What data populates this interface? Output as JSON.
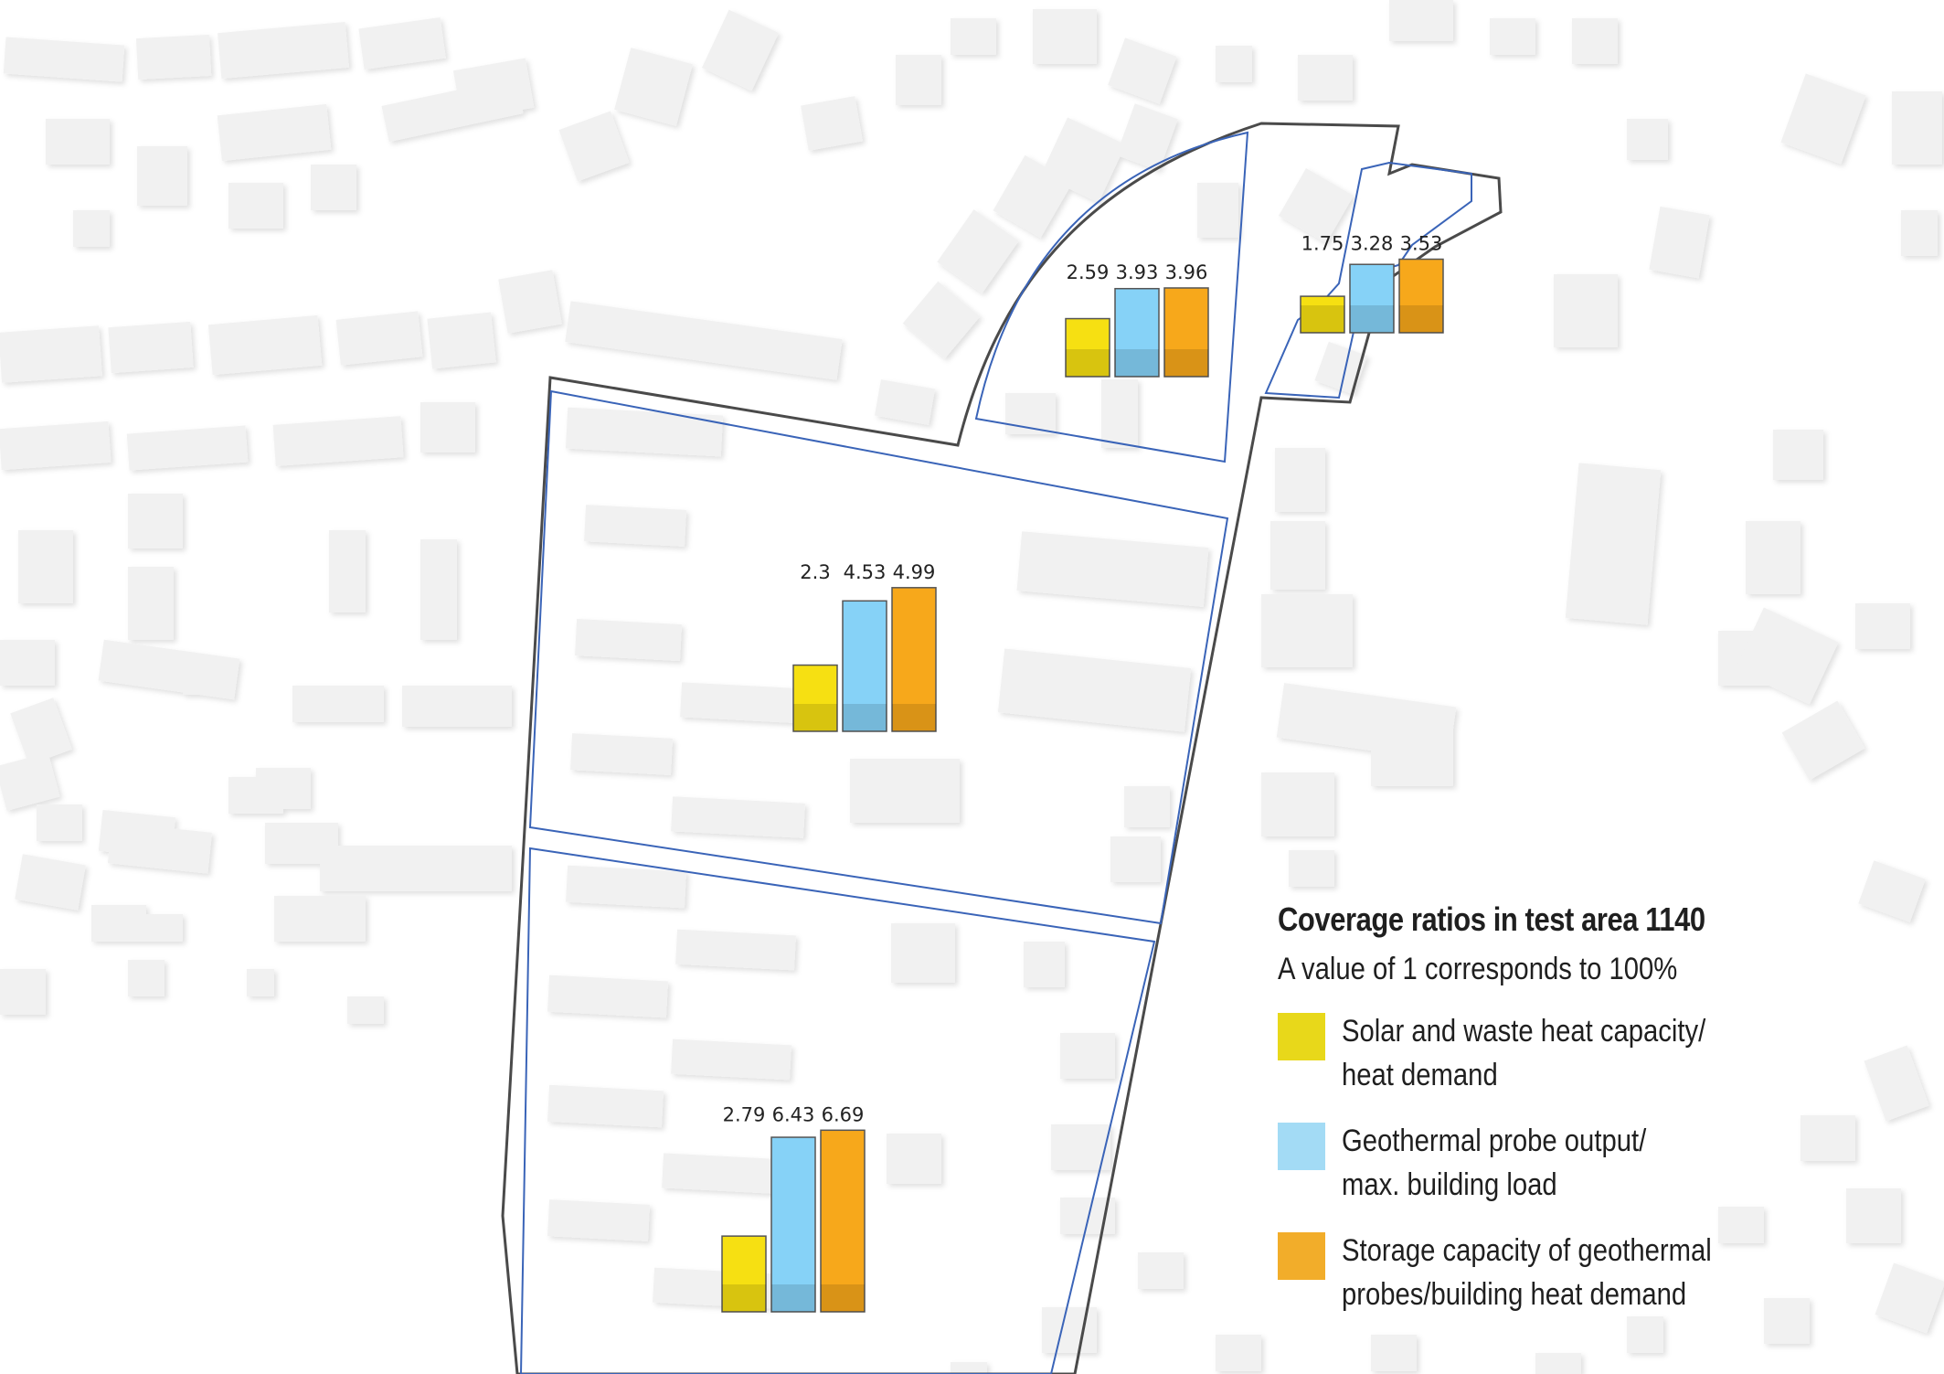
{
  "map": {
    "areas": [
      {
        "id": "nw-upper",
        "values": [
          "2.59",
          "3.93",
          "3.96"
        ]
      },
      {
        "id": "ne-upper",
        "values": [
          "1.75",
          "3.28",
          "3.53"
        ]
      },
      {
        "id": "middle",
        "values": [
          "2.3",
          "4.53",
          "4.99"
        ]
      },
      {
        "id": "lower",
        "values": [
          "2.79",
          "6.43",
          "6.69"
        ]
      }
    ],
    "colors": {
      "solar": "#f6e012",
      "geothermal": "#86d2f7",
      "storage": "#f7a81b",
      "test_area_boundary": "#4a4a4a",
      "subarea_boundary": "#3a64b8",
      "buildings": "#f1f1f1"
    }
  },
  "legend": {
    "title": "Coverage ratios in test area 1140",
    "subtitle": "A value of 1 corresponds to 100%",
    "items": [
      {
        "line1": "Solar and waste heat capacity/",
        "line2": "heat demand"
      },
      {
        "line1": "Geothermal probe output/",
        "line2": "max. building load"
      },
      {
        "line1": "Storage capacity of geothermal",
        "line2": "probes/building heat demand"
      }
    ]
  }
}
